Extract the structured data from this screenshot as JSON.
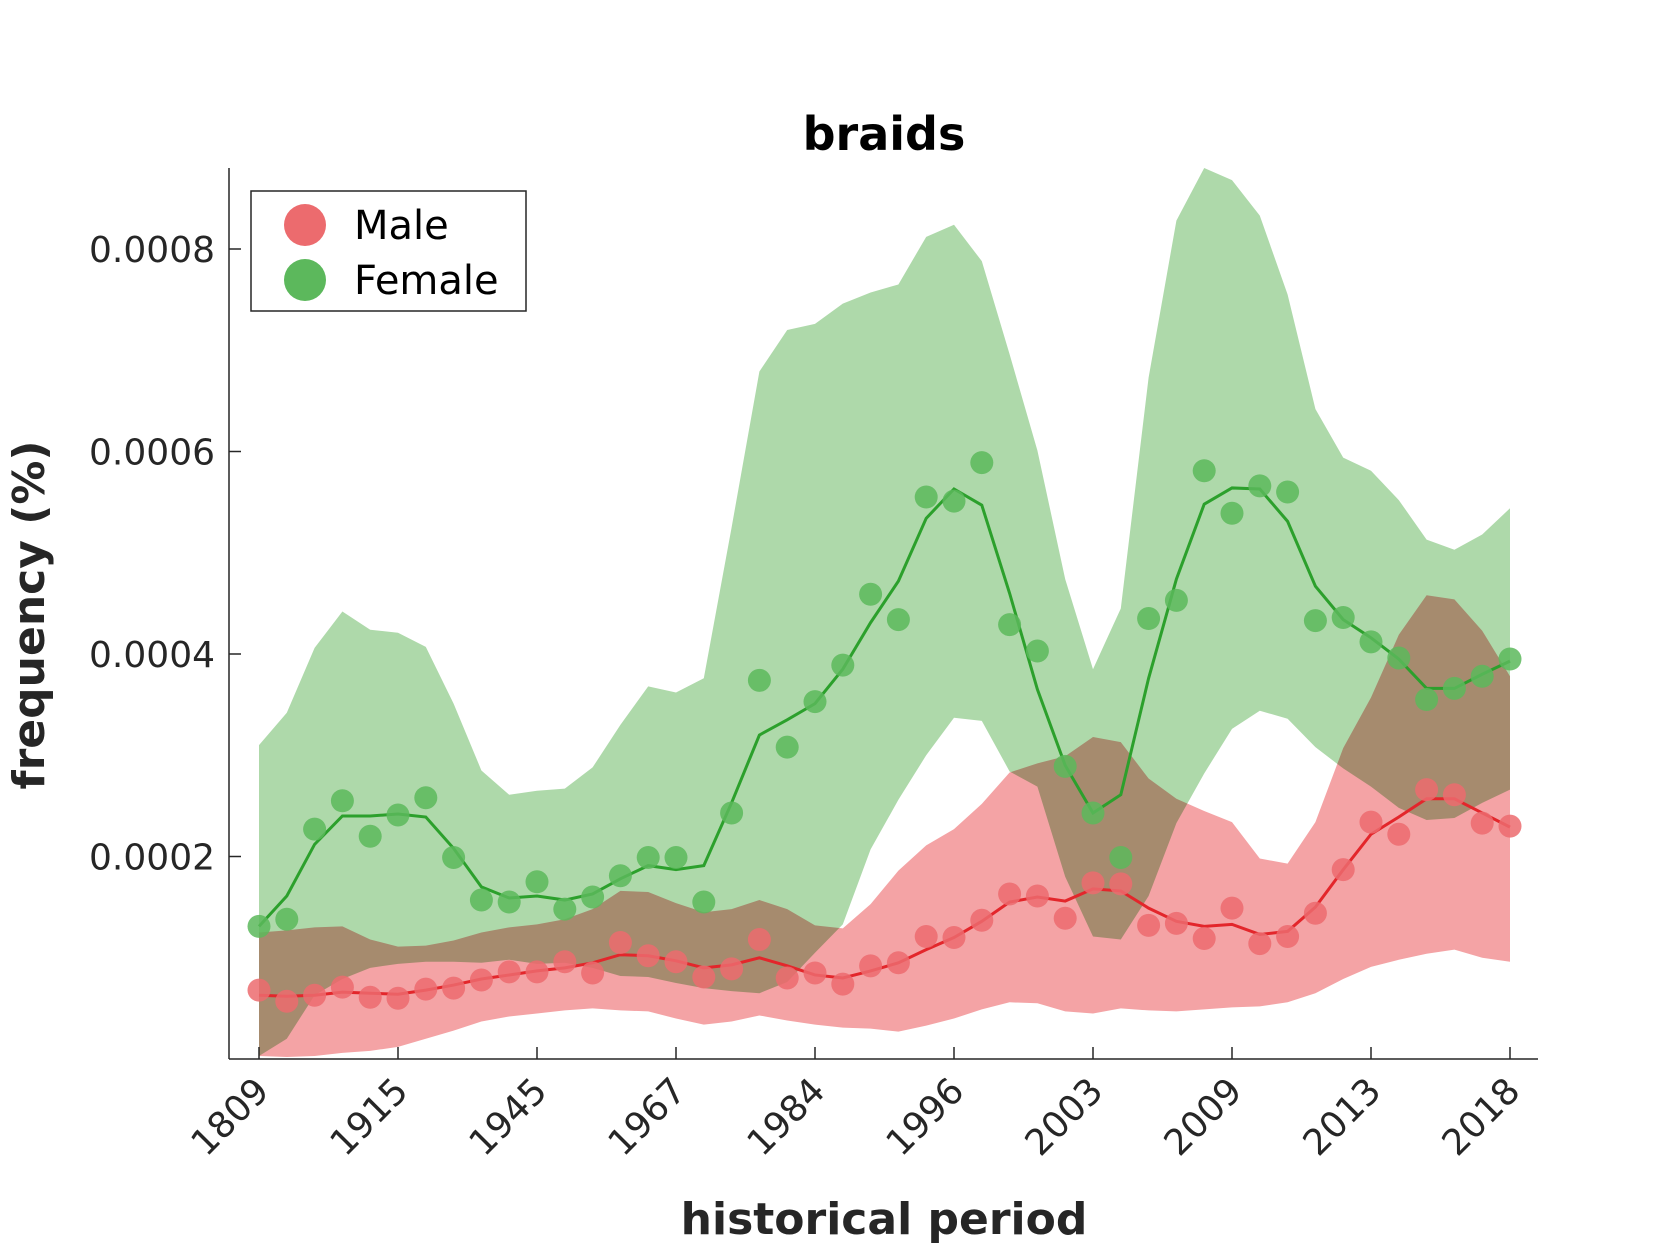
{
  "chart_data": {
    "type": "line",
    "title": "braids",
    "xlabel": "historical period",
    "ylabel": "frequency (%)",
    "x_tick_labels": [
      "1809",
      "1915",
      "1945",
      "1967",
      "1984",
      "1996",
      "2003",
      "2009",
      "2013",
      "2018"
    ],
    "y_ticks": [
      0.0002,
      0.0004,
      0.0006,
      0.0008
    ],
    "y_tick_labels": [
      "0.0002",
      "0.0004",
      "0.0006",
      "0.0008"
    ],
    "ylim": [
      0.0,
      0.00088
    ],
    "legend_position": "top-left",
    "grid": false,
    "n_points": 46,
    "series": [
      {
        "name": "Male",
        "color": "#e3262b",
        "marker_color": "#ec6b6e",
        "band_color": "#f4a3a5",
        "points": [
          6.8e-05,
          5.7e-05,
          6.3e-05,
          7.1e-05,
          6.1e-05,
          6e-05,
          6.9e-05,
          7e-05,
          7.8e-05,
          8.6e-05,
          8.6e-05,
          9.6e-05,
          8.5e-05,
          0.000115,
          0.000102,
          9.6e-05,
          8.1e-05,
          8.9e-05,
          0.000118,
          8e-05,
          8.5e-05,
          7.4e-05,
          9.2e-05,
          9.5e-05,
          0.000121,
          0.00012,
          0.000137,
          0.000163,
          0.000161,
          0.000139,
          0.000174,
          0.000173,
          0.000132,
          0.000134,
          0.000119,
          0.000149,
          0.000114,
          0.000121,
          0.000144,
          0.000187,
          0.000234,
          0.000222,
          0.000266,
          0.000261,
          0.000233,
          0.00023
        ],
        "line": [
          6.3e-05,
          6.2e-05,
          6.3e-05,
          6.6e-05,
          6.5e-05,
          6.4e-05,
          6.8e-05,
          7.3e-05,
          7.9e-05,
          8.3e-05,
          8.7e-05,
          9e-05,
          9.5e-05,
          0.000103,
          0.000102,
          9.7e-05,
          9e-05,
          9.3e-05,
          0.0001,
          9.2e-05,
          8.3e-05,
          8e-05,
          8.7e-05,
          9.5e-05,
          0.000108,
          0.00012,
          0.000136,
          0.000155,
          0.00016,
          0.000156,
          0.000168,
          0.000166,
          0.000149,
          0.000136,
          0.000131,
          0.000133,
          0.000123,
          0.000126,
          0.00015,
          0.000187,
          0.000222,
          0.000239,
          0.000257,
          0.000257,
          0.000243,
          0.000229
        ],
        "band_upper": [
          0.000125,
          0.000127,
          0.00013,
          0.000131,
          0.000118,
          0.000111,
          0.000112,
          0.000117,
          0.000125,
          0.00013,
          0.000133,
          0.000138,
          0.000148,
          0.000166,
          0.000165,
          0.000154,
          0.000145,
          0.000148,
          0.000157,
          0.000148,
          0.000132,
          0.000129,
          0.000153,
          0.000186,
          0.000211,
          0.000227,
          0.000252,
          0.000283,
          0.000292,
          0.000299,
          0.000318,
          0.000313,
          0.000277,
          0.000257,
          0.000245,
          0.000234,
          0.000198,
          0.000193,
          0.000234,
          0.000307,
          0.000357,
          0.000419,
          0.000458,
          0.000454,
          0.000423,
          0.000378
        ],
        "band_lower": [
          3e-06,
          2e-06,
          3e-06,
          6e-06,
          8e-06,
          1.2e-05,
          2e-05,
          2.8e-05,
          3.7e-05,
          4.2e-05,
          4.5e-05,
          4.8e-05,
          5e-05,
          4.8e-05,
          4.7e-05,
          4e-05,
          3.4e-05,
          3.7e-05,
          4.3e-05,
          3.8e-05,
          3.4e-05,
          3.1e-05,
          3e-05,
          2.7e-05,
          3.3e-05,
          4e-05,
          4.9e-05,
          5.6e-05,
          5.5e-05,
          4.7e-05,
          4.5e-05,
          5e-05,
          4.8e-05,
          4.7e-05,
          4.9e-05,
          5.1e-05,
          5.2e-05,
          5.6e-05,
          6.5e-05,
          7.9e-05,
          9.1e-05,
          9.8e-05,
          0.000104,
          0.000108,
          0.0001,
          9.6e-05
        ]
      },
      {
        "name": "Female",
        "color": "#2ca02c",
        "marker_color": "#5cb85c",
        "band_color": "#aed9aa",
        "points": [
          0.000131,
          0.000138,
          0.000227,
          0.000255,
          0.00022,
          0.000241,
          0.000258,
          0.000199,
          0.000157,
          0.000155,
          0.000175,
          0.000148,
          0.00016,
          0.000181,
          0.000199,
          0.000199,
          0.000155,
          0.000243,
          0.000374,
          0.000308,
          0.000353,
          0.000389,
          0.000459,
          0.000434,
          0.000555,
          0.000551,
          0.000589,
          0.000429,
          0.000403,
          0.000289,
          0.000243,
          0.000199,
          0.000435,
          0.000453,
          0.000581,
          0.000539,
          0.000566,
          0.00056,
          0.000433,
          0.000436,
          0.000412,
          0.000396,
          0.000355,
          0.000366,
          0.000378,
          0.000395
        ],
        "line": [
          0.000131,
          0.000161,
          0.000212,
          0.00024,
          0.00024,
          0.000242,
          0.000239,
          0.000208,
          0.00017,
          0.000159,
          0.000161,
          0.000157,
          0.000163,
          0.000178,
          0.000191,
          0.000187,
          0.000191,
          0.000253,
          0.00032,
          0.000335,
          0.000351,
          0.000385,
          0.000431,
          0.000472,
          0.000534,
          0.000563,
          0.000547,
          0.00046,
          0.000365,
          0.00029,
          0.000243,
          0.000261,
          0.000376,
          0.000474,
          0.000548,
          0.000564,
          0.000563,
          0.000531,
          0.000467,
          0.000434,
          0.000416,
          0.000395,
          0.000366,
          0.000366,
          0.00038,
          0.000393
        ],
        "band_upper": [
          0.00031,
          0.000342,
          0.000406,
          0.000442,
          0.000424,
          0.000421,
          0.000407,
          0.000351,
          0.000285,
          0.000261,
          0.000265,
          0.000267,
          0.000288,
          0.00033,
          0.000368,
          0.000362,
          0.000376,
          0.000525,
          0.000679,
          0.00072,
          0.000726,
          0.000746,
          0.000757,
          0.000765,
          0.000812,
          0.000824,
          0.000788,
          0.000696,
          0.000601,
          0.000474,
          0.000385,
          0.000445,
          0.000673,
          0.000828,
          0.00088,
          0.000868,
          0.000833,
          0.000755,
          0.000642,
          0.000594,
          0.000581,
          0.000552,
          0.000513,
          0.000503,
          0.000518,
          0.000544
        ],
        "band_lower": [
          3e-06,
          2e-05,
          6.3e-05,
          7.9e-05,
          9e-05,
          9.4e-05,
          9.6e-05,
          9.6e-05,
          9.5e-05,
          9.8e-05,
          9.4e-05,
          9.5e-05,
          9e-05,
          8.2e-05,
          8.1e-05,
          7.5e-05,
          7e-05,
          6.7e-05,
          6.5e-05,
          7.6e-05,
          0.000105,
          0.000133,
          0.000207,
          0.000256,
          0.0003,
          0.000337,
          0.000334,
          0.000284,
          0.000269,
          0.00018,
          0.000121,
          0.000118,
          0.000161,
          0.000233,
          0.000282,
          0.000326,
          0.000344,
          0.000336,
          0.000308,
          0.000287,
          0.000269,
          0.000248,
          0.000236,
          0.000238,
          0.000253,
          0.000266
        ]
      }
    ]
  }
}
